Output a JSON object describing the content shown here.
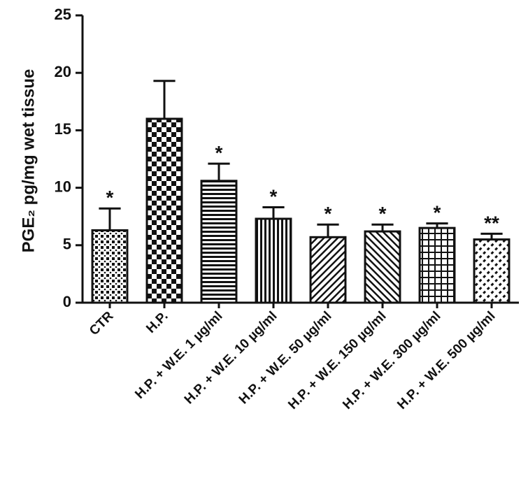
{
  "chart_data": {
    "type": "bar",
    "y_label": "PGE₂ pg/mg wet tissue",
    "categories": [
      "CTR",
      "H.P.",
      "H.P. + W.E. 1  µg/ml",
      "H.P. + W.E. 10  µg/ml",
      "H.P. + W.E. 50  µg/ml",
      "H.P. + W.E. 150  µg/ml",
      "H.P. + W.E. 300  µg/ml",
      "H.P. + W.E. 500  µg/ml"
    ],
    "values": [
      6.3,
      16.0,
      10.6,
      7.3,
      5.7,
      6.2,
      6.5,
      5.5
    ],
    "errors": [
      1.9,
      3.3,
      1.5,
      1.0,
      1.1,
      0.6,
      0.4,
      0.5
    ],
    "annotations": [
      "*",
      null,
      "*",
      "*",
      "*",
      "*",
      "*",
      "**"
    ],
    "color": "#111111",
    "ylim": [
      0,
      25
    ],
    "yticks": [
      0,
      5,
      10,
      15,
      20,
      25
    ],
    "grid": false
  }
}
